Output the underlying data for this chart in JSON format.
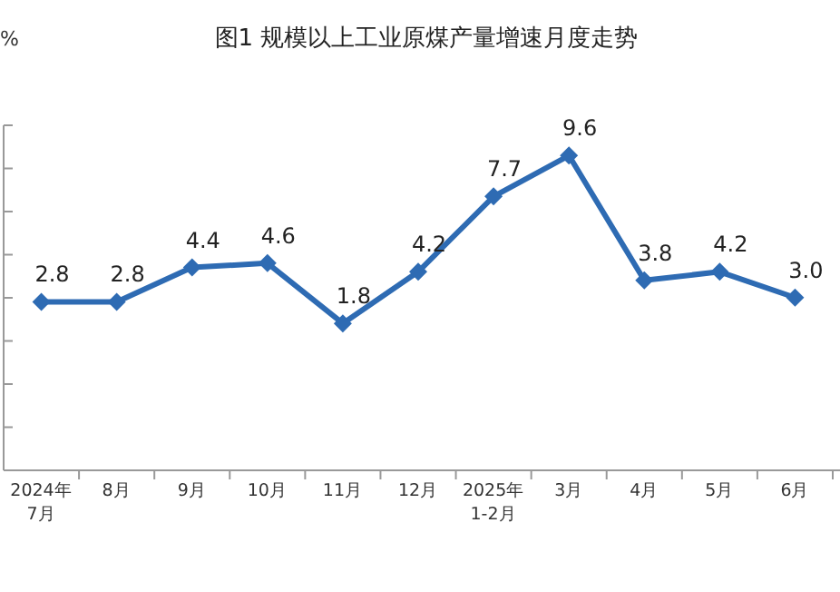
{
  "chart_data": {
    "type": "line",
    "title": "图1  规模以上工业原煤产量增速月度走势",
    "annotations": [
      "%"
    ],
    "categories": [
      "2024年\n7月",
      "8月",
      "9月",
      "10月",
      "11月",
      "12月",
      "2025年\n1-2月",
      "3月",
      "4月",
      "5月",
      "6月"
    ],
    "series": [
      {
        "color": "#2e6bb3",
        "values": [
          2.8,
          2.8,
          4.4,
          4.6,
          1.8,
          4.2,
          7.7,
          9.6,
          3.8,
          4.2,
          3.0
        ],
        "value_labels": [
          "2.8",
          "2.8",
          "4.4",
          "4.6",
          "1.8",
          "4.2",
          "7.7",
          "9.6",
          "3.8",
          "4.2",
          "3.0"
        ]
      }
    ],
    "tick_labels": "x",
    "marker": "diamond",
    "line_style": "solid",
    "grid": false
  }
}
